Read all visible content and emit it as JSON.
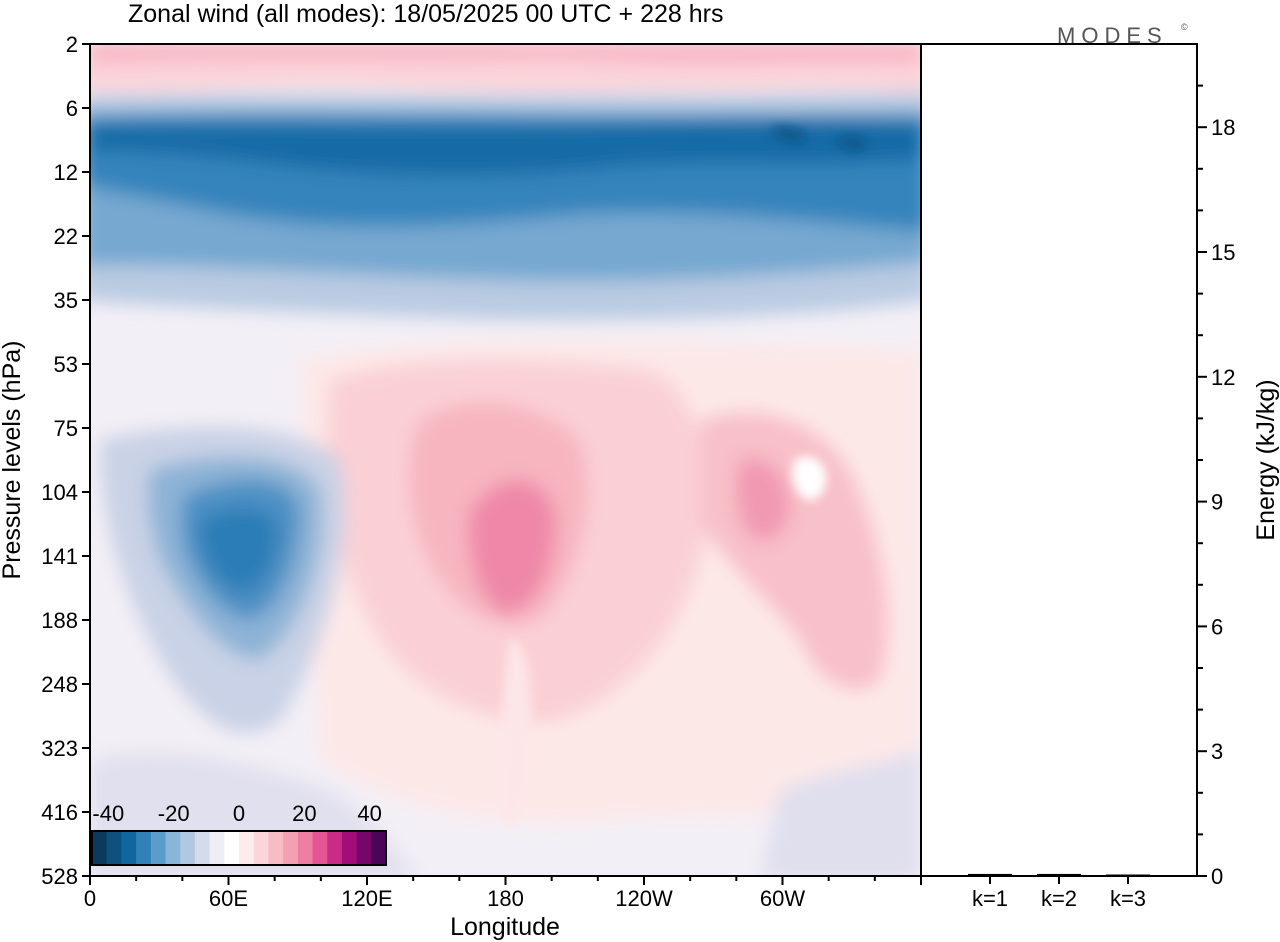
{
  "header": {
    "title": "Zonal wind (all modes):  18/05/2025  00 UTC  + 228 hrs",
    "brand": "MODES",
    "brand_mark": "©"
  },
  "chart_data": [
    {
      "type": "heatmap",
      "title": "Zonal wind (all modes):  18/05/2025  00 UTC  + 228 hrs",
      "xlabel": "Longitude",
      "ylabel": "Pressure levels (hPa)",
      "x_ticks": [
        "0",
        "60E",
        "120E",
        "180",
        "120W",
        "60W"
      ],
      "x_tick_values": [
        0,
        60,
        120,
        180,
        240,
        300
      ],
      "xlim": [
        0,
        360
      ],
      "y_ticks": [
        "2",
        "6",
        "12",
        "22",
        "35",
        "53",
        "75",
        "104",
        "141",
        "188",
        "248",
        "323",
        "416",
        "528"
      ],
      "y_scale": "pressure levels, inverted (2 at top, 528 at bottom)",
      "colorbar": {
        "tick_labels": [
          "-40",
          "-20",
          "0",
          "20",
          "40"
        ],
        "tick_values": [
          -40,
          -20,
          0,
          20,
          40
        ],
        "range": [
          -45,
          45
        ],
        "colors": [
          "#0b3a5c",
          "#0d517f",
          "#1067a0",
          "#2f81b8",
          "#5a9ccc",
          "#88b5d8",
          "#b2c8e2",
          "#d4dcec",
          "#edeef6",
          "#ffffff",
          "#fdecec",
          "#fbd6d8",
          "#f8bcc4",
          "#f4a0b2",
          "#ef7fa2",
          "#e45593",
          "#c92c86",
          "#a30d77",
          "#77066a",
          "#4a045a"
        ]
      },
      "features": [
        {
          "name": "stratospheric easterly jet",
          "lon_range": [
            0,
            360
          ],
          "p_range": [
            6,
            35
          ],
          "value_min": -35,
          "value_core": -30
        },
        {
          "name": "upper westerly band",
          "lon_range": [
            0,
            360
          ],
          "p_range": [
            2,
            5
          ],
          "value_max": 20
        },
        {
          "name": "easterly core",
          "lon_center": 65,
          "p_center": 141,
          "value_min": -25
        },
        {
          "name": "westerly core",
          "lon_center": 185,
          "p_center": 141,
          "value_max": 15
        },
        {
          "name": "westerly core",
          "lon_center": 290,
          "p_center": 120,
          "value_max": 12
        },
        {
          "name": "westerly region",
          "lon_center": 330,
          "p_center": 180,
          "value_max": 8
        }
      ]
    },
    {
      "type": "bar",
      "categories": [
        "k=1",
        "k=2",
        "k=3"
      ],
      "values": [
        0.05,
        0.05,
        0.02
      ],
      "ylabel": "Energy (kJ/kg)",
      "y_ticks": [
        "0",
        "3",
        "6",
        "9",
        "12",
        "15",
        "18"
      ],
      "ylim": [
        0,
        20
      ]
    }
  ]
}
